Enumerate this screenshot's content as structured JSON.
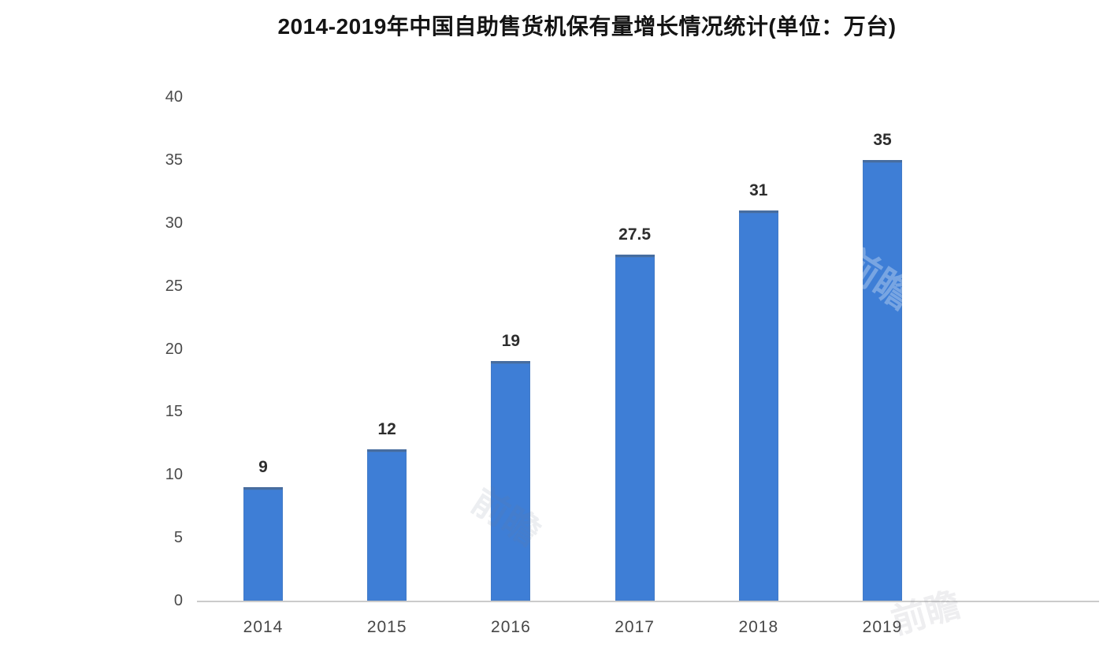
{
  "title": "2014-2019年中国自助售货机保有量增长情况统计(单位：万台)",
  "watermark": {
    "text": "前瞻"
  },
  "chart_data": {
    "type": "bar",
    "title": "2014-2019年中国自助售货机保有量增长情况统计(单位：万台)",
    "categories": [
      "2014",
      "2015",
      "2016",
      "2017",
      "2018",
      "2019"
    ],
    "values": [
      9,
      12,
      19,
      27.5,
      31,
      35
    ],
    "value_labels": [
      "9",
      "12",
      "19",
      "27.5",
      "31",
      "35"
    ],
    "xlabel": "",
    "ylabel": "",
    "ylim": [
      0,
      40
    ],
    "yticks": [
      0,
      5,
      10,
      15,
      20,
      25,
      30,
      35,
      40
    ],
    "bar_color": "#3e7ed6",
    "axis_line_color": "#cbcbcb",
    "grid": false,
    "legend_position": "none"
  }
}
